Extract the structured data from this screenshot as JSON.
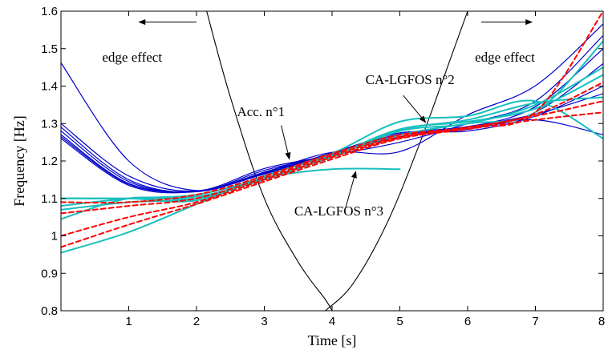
{
  "chart_data": {
    "type": "line",
    "xlabel": "Time [s]",
    "ylabel": "Frequency [Hz]",
    "xlim": [
      0,
      8
    ],
    "ylim": [
      0.8,
      1.6
    ],
    "xticks": [
      1,
      2,
      3,
      4,
      5,
      6,
      7,
      8
    ],
    "yticks": [
      0.8,
      0.9,
      1,
      1.1,
      1.2,
      1.3,
      1.4,
      1.5,
      1.6
    ],
    "grid": false,
    "colors": {
      "acc": "#0000cc",
      "lgfos": "#17bfbf",
      "ref": "#ff0000",
      "edge": "#000000"
    },
    "series": [
      {
        "group": "acc",
        "style": "solid",
        "x": [
          0,
          1,
          2,
          3,
          4,
          5,
          6,
          7,
          8
        ],
        "y": [
          1.462,
          1.2,
          1.121,
          1.17,
          1.223,
          1.225,
          1.323,
          1.401,
          1.566
        ]
      },
      {
        "group": "acc",
        "style": "solid",
        "x": [
          0,
          1,
          2,
          3,
          4,
          5,
          6,
          7,
          8
        ],
        "y": [
          1.3,
          1.16,
          1.12,
          1.18,
          1.215,
          1.25,
          1.3,
          1.36,
          1.535
        ]
      },
      {
        "group": "acc",
        "style": "solid",
        "x": [
          0,
          1,
          2,
          3,
          4,
          5,
          6,
          7,
          8
        ],
        "y": [
          1.29,
          1.15,
          1.118,
          1.175,
          1.218,
          1.265,
          1.29,
          1.345,
          1.5
        ]
      },
      {
        "group": "acc",
        "style": "solid",
        "x": [
          0,
          1,
          2,
          3,
          4,
          5,
          6,
          7,
          8
        ],
        "y": [
          1.28,
          1.145,
          1.118,
          1.17,
          1.22,
          1.27,
          1.285,
          1.33,
          1.46
        ]
      },
      {
        "group": "acc",
        "style": "solid",
        "x": [
          0,
          1,
          2,
          3,
          4,
          5,
          6,
          7,
          8
        ],
        "y": [
          1.27,
          1.14,
          1.12,
          1.168,
          1.222,
          1.275,
          1.28,
          1.32,
          1.4
        ]
      },
      {
        "group": "acc",
        "style": "solid",
        "x": [
          0,
          1,
          2,
          3,
          4,
          5,
          6,
          7,
          8
        ],
        "y": [
          1.26,
          1.135,
          1.118,
          1.165,
          1.22,
          1.272,
          1.29,
          1.31,
          1.27
        ]
      },
      {
        "group": "acc",
        "style": "solid",
        "x": [
          0,
          1,
          2,
          3,
          4,
          5,
          6,
          7,
          8
        ],
        "y": [
          1.265,
          1.138,
          1.12,
          1.166,
          1.221,
          1.27,
          1.292,
          1.325,
          1.38
        ]
      },
      {
        "group": "lgfos",
        "style": "solid",
        "x": [
          0,
          1,
          2,
          3,
          4,
          5,
          6,
          7,
          8
        ],
        "y": [
          1.1,
          1.1,
          1.095,
          1.16,
          1.22,
          1.305,
          1.32,
          1.36,
          1.26
        ]
      },
      {
        "group": "lgfos",
        "style": "solid",
        "x": [
          0,
          1,
          2,
          3,
          4,
          5
        ],
        "y": [
          1.045,
          1.1,
          1.1,
          1.155,
          1.178,
          1.178
        ]
      },
      {
        "group": "lgfos",
        "style": "solid",
        "x": [
          0,
          1,
          2,
          3,
          4,
          5,
          6,
          7,
          8
        ],
        "y": [
          0.955,
          1.01,
          1.085,
          1.16,
          1.215,
          1.27,
          1.3,
          1.33,
          1.52
        ]
      },
      {
        "group": "lgfos",
        "style": "solid",
        "x": [
          0,
          1,
          2,
          3,
          4,
          5,
          6,
          7,
          8
        ],
        "y": [
          1.08,
          1.1,
          1.11,
          1.155,
          1.21,
          1.28,
          1.3,
          1.35,
          1.45
        ]
      },
      {
        "group": "lgfos",
        "style": "solid",
        "x": [
          0,
          1,
          2,
          3,
          4,
          5,
          6,
          7,
          8
        ],
        "y": [
          1.1,
          1.1,
          1.105,
          1.15,
          1.212,
          1.283,
          1.31,
          1.355,
          1.37
        ]
      },
      {
        "group": "lgfos",
        "style": "solid",
        "x": [
          0,
          1,
          2,
          3,
          4,
          5,
          6,
          7,
          8
        ],
        "y": [
          1.07,
          1.09,
          1.1,
          1.152,
          1.213,
          1.285,
          1.305,
          1.34,
          1.43
        ]
      },
      {
        "group": "ref",
        "style": "dashed",
        "x": [
          0,
          1,
          2,
          3,
          4,
          5,
          6,
          7,
          8
        ],
        "y": [
          1.09,
          1.09,
          1.11,
          1.16,
          1.22,
          1.27,
          1.29,
          1.33,
          1.6
        ]
      },
      {
        "group": "ref",
        "style": "dashed",
        "x": [
          0,
          1,
          2,
          3,
          4,
          5,
          6,
          7,
          8
        ],
        "y": [
          1.06,
          1.08,
          1.1,
          1.155,
          1.215,
          1.265,
          1.29,
          1.325,
          1.41
        ]
      },
      {
        "group": "ref",
        "style": "dashed",
        "x": [
          0,
          1,
          2,
          3,
          4,
          5,
          6,
          7,
          8
        ],
        "y": [
          1.0,
          1.05,
          1.09,
          1.15,
          1.21,
          1.262,
          1.288,
          1.32,
          1.36
        ]
      },
      {
        "group": "ref",
        "style": "dashed",
        "x": [
          0,
          1,
          2,
          3,
          4,
          5,
          6,
          7,
          8
        ],
        "y": [
          0.97,
          1.03,
          1.085,
          1.145,
          1.205,
          1.26,
          1.285,
          1.31,
          1.33
        ]
      },
      {
        "group": "edge",
        "style": "solid",
        "x": [
          2.15,
          2.5,
          3.0,
          3.5,
          3.9,
          4.0
        ],
        "y": [
          1.6,
          1.37,
          1.1,
          0.93,
          0.83,
          0.8
        ]
      },
      {
        "group": "edge",
        "style": "solid",
        "x": [
          3.9,
          4.3,
          4.8,
          5.3,
          5.8,
          6.0
        ],
        "y": [
          0.8,
          0.87,
          1.03,
          1.25,
          1.5,
          1.6
        ]
      }
    ],
    "annotations": [
      {
        "text": "edge effect",
        "x": 1.05,
        "y": 1.465
      },
      {
        "text": "edge effect",
        "x": 6.55,
        "y": 1.465
      },
      {
        "text": "CA-LGFOS n°2",
        "x": 5.15,
        "y": 1.405
      },
      {
        "text": "Acc. n°1",
        "x": 2.95,
        "y": 1.32
      },
      {
        "text": "CA-LGFOS n°3",
        "x": 4.1,
        "y": 1.055
      }
    ],
    "arrows": [
      {
        "name": "edge-left",
        "from": [
          2.0,
          1.571
        ],
        "to": [
          1.15,
          1.571
        ]
      },
      {
        "name": "edge-right",
        "from": [
          6.2,
          1.571
        ],
        "to": [
          6.95,
          1.571
        ]
      },
      {
        "name": "lgfos2",
        "from": [
          5.05,
          1.375
        ],
        "to": [
          5.38,
          1.303
        ]
      },
      {
        "name": "acc1",
        "from": [
          3.25,
          1.295
        ],
        "to": [
          3.37,
          1.205
        ]
      },
      {
        "name": "lgfos3",
        "from": [
          4.2,
          1.075
        ],
        "to": [
          4.35,
          1.172
        ]
      }
    ]
  }
}
